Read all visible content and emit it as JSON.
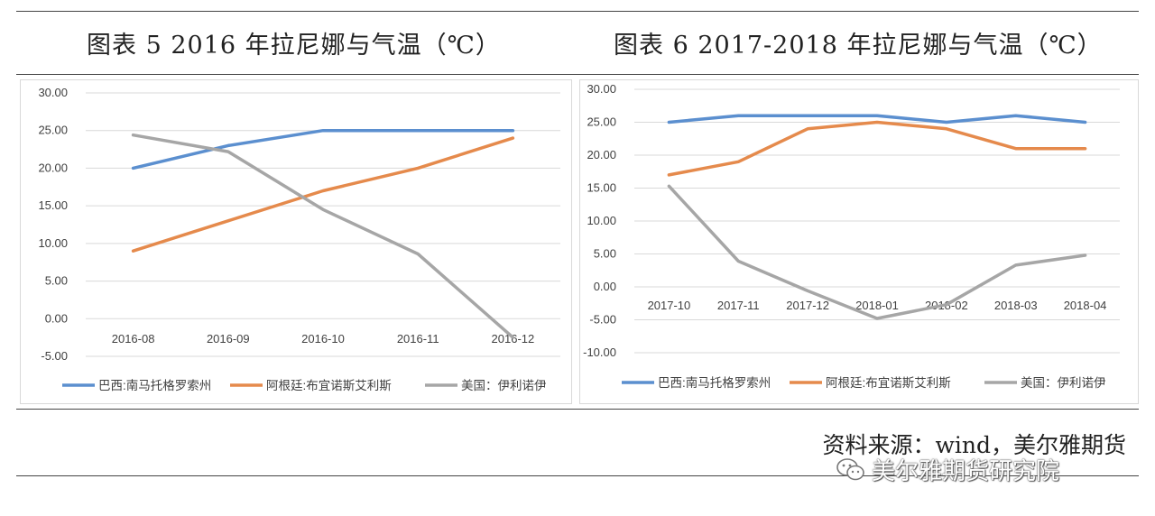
{
  "header": {
    "left_title": "图表 5  2016 年拉尼娜与气温（℃）",
    "right_title": "图表 6  2017-2018 年拉尼娜与气温（℃）"
  },
  "footer": {
    "source": "资料来源：wind，美尔雅期货",
    "watermark": "美尔雅期货研究院",
    "watermark_icon": "wechat-icon"
  },
  "colors": {
    "brazil": "#5B8FCF",
    "argentina": "#E58A4C",
    "usa": "#A6A6A6",
    "grid": "#D9D9D9",
    "axis_text": "#404040"
  },
  "chart_data": [
    {
      "type": "line",
      "title": "图表 5  2016 年拉尼娜与气温（℃）",
      "categories": [
        "2016-08",
        "2016-09",
        "2016-10",
        "2016-11",
        "2016-12"
      ],
      "ylim": [
        -5,
        30
      ],
      "yticks": [
        "30.00",
        "25.00",
        "20.00",
        "15.00",
        "10.00",
        "5.00",
        "0.00",
        "-5.00"
      ],
      "grid": true,
      "legend": "bottom",
      "series": [
        {
          "name": "巴西:南马托格罗索州",
          "color": "#5B8FCF",
          "values": [
            20,
            23,
            25,
            25,
            25
          ]
        },
        {
          "name": "阿根廷:布宜诺斯艾利斯",
          "color": "#E58A4C",
          "values": [
            9,
            13,
            17,
            20,
            24
          ]
        },
        {
          "name": "美国：伊利诺伊",
          "color": "#A6A6A6",
          "values": [
            24.4,
            22.2,
            14.5,
            8.6,
            -2.5
          ]
        }
      ]
    },
    {
      "type": "line",
      "title": "图表 6  2017-2018 年拉尼娜与气温（℃）",
      "categories": [
        "2017-10",
        "2017-11",
        "2017-12",
        "2018-01",
        "2018-02",
        "2018-03",
        "2018-04"
      ],
      "ylim": [
        -10,
        30
      ],
      "yticks": [
        "30.00",
        "25.00",
        "20.00",
        "15.00",
        "10.00",
        "5.00",
        "0.00",
        "-5.00",
        "-10.00"
      ],
      "grid": true,
      "legend": "bottom",
      "series": [
        {
          "name": "巴西:南马托格罗索州",
          "color": "#5B8FCF",
          "values": [
            25,
            26,
            26,
            26,
            25,
            26,
            25
          ]
        },
        {
          "name": "阿根廷:布宜诺斯艾利斯",
          "color": "#E58A4C",
          "values": [
            17,
            19,
            24,
            25,
            24,
            21,
            21
          ]
        },
        {
          "name": "美国：伊利诺伊",
          "color": "#A6A6A6",
          "values": [
            15.3,
            3.9,
            -0.6,
            -4.8,
            -2.7,
            3.3,
            4.8
          ]
        }
      ]
    }
  ]
}
